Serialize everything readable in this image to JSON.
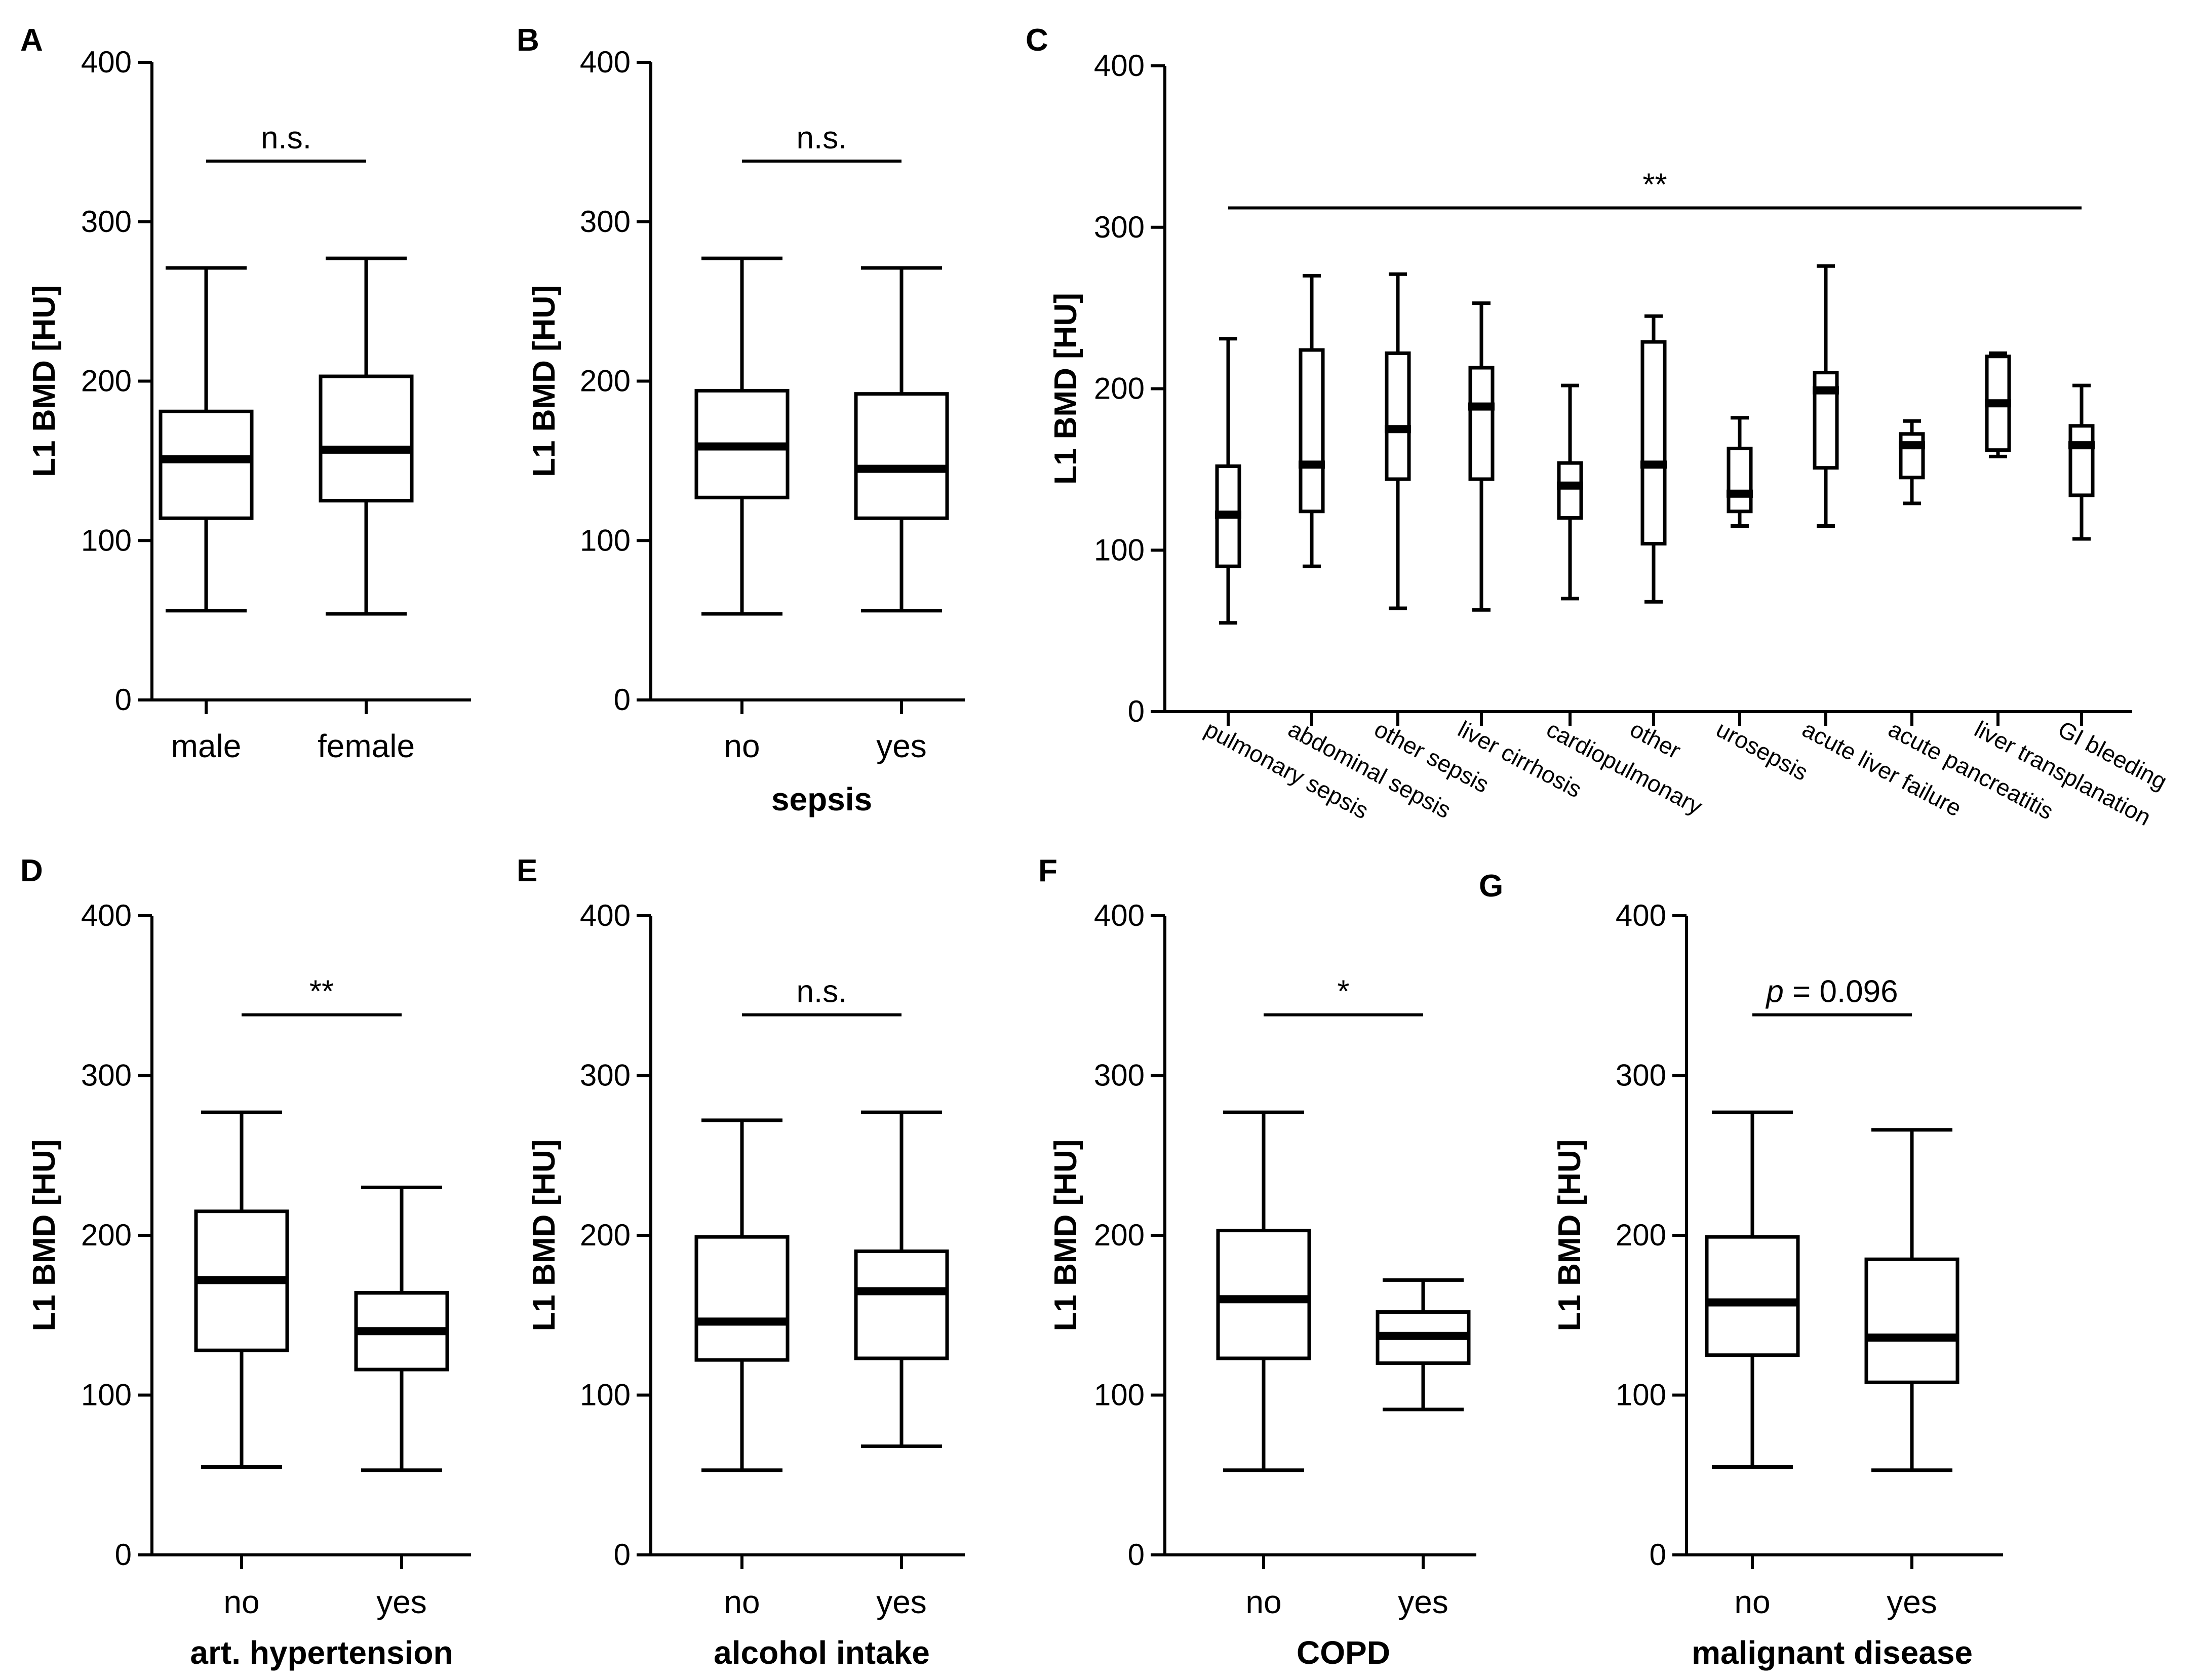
{
  "chart_data": [
    {
      "panel": "A",
      "type": "box",
      "ylabel": "L1 BMD [HU]",
      "xlabel": "",
      "ylim": [
        0,
        400
      ],
      "yticks": [
        "0",
        "100",
        "200",
        "300",
        "400"
      ],
      "categories": [
        "male",
        "female"
      ],
      "boxes": [
        {
          "min": 56,
          "q1": 114,
          "median": 151,
          "q3": 181,
          "max": 271
        },
        {
          "min": 54,
          "q1": 125,
          "median": 157,
          "q3": 203,
          "max": 277
        }
      ],
      "significance": {
        "label": "n.s.",
        "italic_prefix": "",
        "from": 0,
        "to": 1,
        "y": 338
      }
    },
    {
      "panel": "B",
      "type": "box",
      "ylabel": "L1 BMD [HU]",
      "xlabel": "sepsis",
      "ylim": [
        0,
        400
      ],
      "yticks": [
        "0",
        "100",
        "200",
        "300",
        "400"
      ],
      "categories": [
        "no",
        "yes"
      ],
      "boxes": [
        {
          "min": 54,
          "q1": 127,
          "median": 159,
          "q3": 194,
          "max": 277
        },
        {
          "min": 56,
          "q1": 114,
          "median": 145,
          "q3": 192,
          "max": 271
        }
      ],
      "significance": {
        "label": "n.s.",
        "italic_prefix": "",
        "from": 0,
        "to": 1,
        "y": 338
      }
    },
    {
      "panel": "C",
      "type": "box",
      "ylabel": "L1 BMD [HU]",
      "xlabel": "",
      "ylim": [
        0,
        400
      ],
      "yticks": [
        "0",
        "100",
        "200",
        "300",
        "400"
      ],
      "categories": [
        "pulmonary sepsis",
        "abdominal sepsis",
        "other sepsis",
        "liver cirrhosis",
        "cardiopulmonary",
        "other",
        "urosepsis",
        "acute liver failure",
        "acute pancreatitis",
        "liver transplanation",
        "GI bleeding"
      ],
      "boxes": [
        {
          "min": 55,
          "q1": 90,
          "median": 122,
          "q3": 152,
          "max": 231
        },
        {
          "min": 90,
          "q1": 124,
          "median": 153,
          "q3": 224,
          "max": 270
        },
        {
          "min": 64,
          "q1": 144,
          "median": 175,
          "q3": 222,
          "max": 271
        },
        {
          "min": 63,
          "q1": 144,
          "median": 189,
          "q3": 213,
          "max": 253
        },
        {
          "min": 70,
          "q1": 120,
          "median": 140,
          "q3": 154,
          "max": 202
        },
        {
          "min": 68,
          "q1": 104,
          "median": 153,
          "q3": 229,
          "max": 245
        },
        {
          "min": 115,
          "q1": 124,
          "median": 135,
          "q3": 163,
          "max": 182
        },
        {
          "min": 115,
          "q1": 151,
          "median": 199,
          "q3": 210,
          "max": 276
        },
        {
          "min": 129,
          "q1": 145,
          "median": 165,
          "q3": 172,
          "max": 180
        },
        {
          "min": 158,
          "q1": 162,
          "median": 191,
          "q3": 220,
          "max": 222
        },
        {
          "min": 107,
          "q1": 134,
          "median": 165,
          "q3": 177,
          "max": 202
        }
      ],
      "significance": {
        "label": "**",
        "italic_prefix": "",
        "from": 0,
        "to": 10,
        "y": 312
      }
    },
    {
      "panel": "D",
      "type": "box",
      "ylabel": "L1 BMD [HU]",
      "xlabel": "art. hypertension",
      "ylim": [
        0,
        400
      ],
      "yticks": [
        "0",
        "100",
        "200",
        "300",
        "400"
      ],
      "categories": [
        "no",
        "yes"
      ],
      "boxes": [
        {
          "min": 55,
          "q1": 128,
          "median": 172,
          "q3": 215,
          "max": 277
        },
        {
          "min": 53,
          "q1": 116,
          "median": 140,
          "q3": 164,
          "max": 230
        }
      ],
      "significance": {
        "label": "**",
        "italic_prefix": "",
        "from": 0,
        "to": 1,
        "y": 338
      }
    },
    {
      "panel": "E",
      "type": "box",
      "ylabel": "L1 BMD [HU]",
      "xlabel": "alcohol intake",
      "ylim": [
        0,
        400
      ],
      "yticks": [
        "0",
        "100",
        "200",
        "300",
        "400"
      ],
      "categories": [
        "no",
        "yes"
      ],
      "boxes": [
        {
          "min": 53,
          "q1": 122,
          "median": 146,
          "q3": 199,
          "max": 272
        },
        {
          "min": 68,
          "q1": 123,
          "median": 165,
          "q3": 190,
          "max": 277
        }
      ],
      "significance": {
        "label": "n.s.",
        "italic_prefix": "",
        "from": 0,
        "to": 1,
        "y": 338
      }
    },
    {
      "panel": "F",
      "type": "box",
      "ylabel": "L1 BMD [HU]",
      "xlabel": "COPD",
      "ylim": [
        0,
        400
      ],
      "yticks": [
        "0",
        "100",
        "200",
        "300",
        "400"
      ],
      "categories": [
        "no",
        "yes"
      ],
      "boxes": [
        {
          "min": 53,
          "q1": 123,
          "median": 160,
          "q3": 203,
          "max": 277
        },
        {
          "min": 91,
          "q1": 120,
          "median": 137,
          "q3": 152,
          "max": 172
        }
      ],
      "significance": {
        "label": "*",
        "italic_prefix": "",
        "from": 0,
        "to": 1,
        "y": 338
      }
    },
    {
      "panel": "G",
      "type": "box",
      "ylabel": "L1 BMD [HU]",
      "xlabel": "malignant disease",
      "ylim": [
        0,
        400
      ],
      "yticks": [
        "0",
        "100",
        "200",
        "300",
        "400"
      ],
      "categories": [
        "no",
        "yes"
      ],
      "boxes": [
        {
          "min": 55,
          "q1": 125,
          "median": 158,
          "q3": 199,
          "max": 277
        },
        {
          "min": 53,
          "q1": 108,
          "median": 136,
          "q3": 185,
          "max": 266
        }
      ],
      "significance": {
        "label": " = 0.096",
        "italic_prefix": "p",
        "from": 0,
        "to": 1,
        "y": 338
      }
    }
  ]
}
